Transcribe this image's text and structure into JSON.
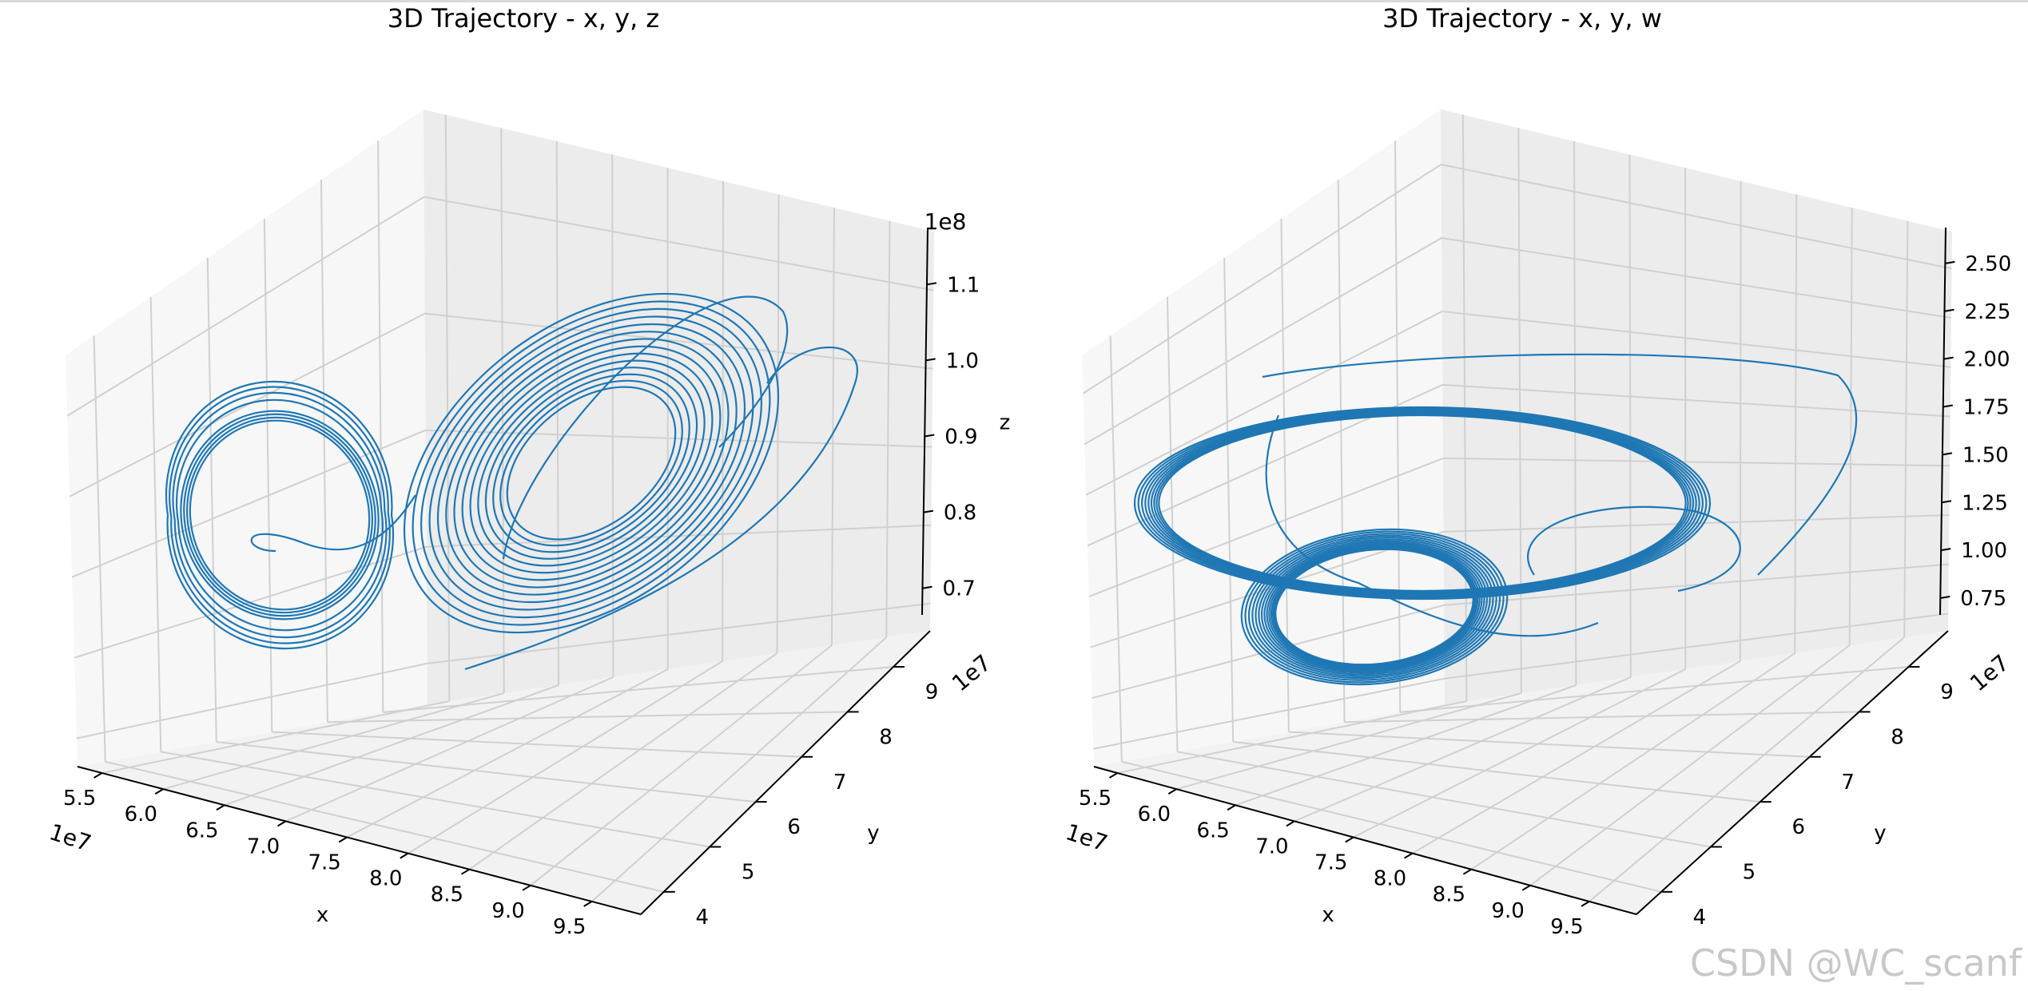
{
  "watermark": "CSDN @WC_scanf",
  "line_color": "#1f77b4",
  "chart_data": [
    {
      "type": "line",
      "title": "3D Trajectory - x, y, z",
      "xlabel": "x",
      "ylabel": "y",
      "zlabel": "z",
      "x_scale": "1e7",
      "y_scale": "1e7",
      "z_scale": "1e8",
      "x_ticks": [
        "5.5",
        "6.0",
        "6.5",
        "7.0",
        "7.5",
        "8.0",
        "8.5",
        "9.0",
        "9.5"
      ],
      "y_ticks": [
        "4",
        "5",
        "6",
        "7",
        "8",
        "9"
      ],
      "z_ticks": [
        "0.7",
        "0.8",
        "0.9",
        "1.0",
        "1.1"
      ],
      "xlim": [
        5.3,
        9.6
      ],
      "ylim": [
        3.8,
        9.5
      ],
      "zlim": [
        0.67,
        1.15
      ],
      "grid": true
    },
    {
      "type": "line",
      "title": "3D Trajectory - x, y, w",
      "xlabel": "x",
      "ylabel": "y",
      "zlabel": "",
      "x_scale": "1e7",
      "y_scale": "1e7",
      "z_scale": "",
      "x_ticks": [
        "5.5",
        "6.0",
        "6.5",
        "7.0",
        "7.5",
        "8.0",
        "8.5",
        "9.0",
        "9.5"
      ],
      "y_ticks": [
        "4",
        "5",
        "6",
        "7",
        "8",
        "9"
      ],
      "z_ticks": [
        "0.75",
        "1.00",
        "1.25",
        "1.50",
        "1.75",
        "2.00",
        "2.25",
        "2.50"
      ],
      "xlim": [
        5.3,
        9.6
      ],
      "ylim": [
        3.8,
        9.5
      ],
      "zlim": [
        0.62,
        2.62
      ],
      "grid": true
    }
  ]
}
